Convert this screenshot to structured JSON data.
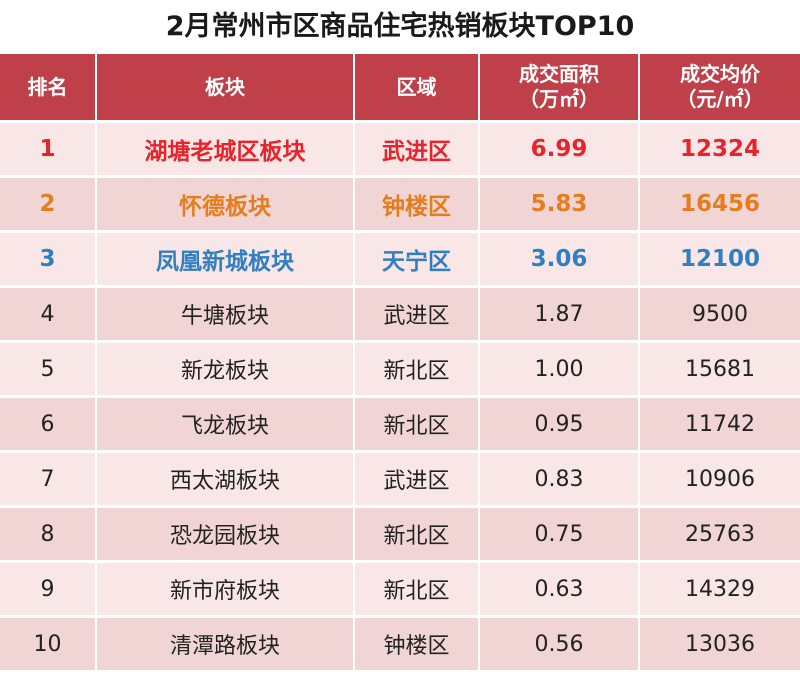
{
  "title": "2月常州市区商品住宅热销板块TOP10",
  "colors": {
    "header_bg": "#c0404a",
    "rank1": "#e8232b",
    "rank2": "#e57d1f",
    "rank3": "#2f7fc1"
  },
  "chart_data": {
    "type": "table",
    "title": "2月常州市区商品住宅热销板块TOP10",
    "columns": [
      "排名",
      "板块",
      "区域",
      "成交面积（万㎡）",
      "成交均价（元/㎡）"
    ],
    "rows": [
      {
        "rank": "1",
        "block": "湖塘老城区板块",
        "district": "武进区",
        "area": "6.99",
        "price": "12324"
      },
      {
        "rank": "2",
        "block": "怀德板块",
        "district": "钟楼区",
        "area": "5.83",
        "price": "16456"
      },
      {
        "rank": "3",
        "block": "凤凰新城板块",
        "district": "天宁区",
        "area": "3.06",
        "price": "12100"
      },
      {
        "rank": "4",
        "block": "牛塘板块",
        "district": "武进区",
        "area": "1.87",
        "price": "9500"
      },
      {
        "rank": "5",
        "block": "新龙板块",
        "district": "新北区",
        "area": "1.00",
        "price": "15681"
      },
      {
        "rank": "6",
        "block": "飞龙板块",
        "district": "新北区",
        "area": "0.95",
        "price": "11742"
      },
      {
        "rank": "7",
        "block": "西太湖板块",
        "district": "武进区",
        "area": "0.83",
        "price": "10906"
      },
      {
        "rank": "8",
        "block": "恐龙园板块",
        "district": "新北区",
        "area": "0.75",
        "price": "25763"
      },
      {
        "rank": "9",
        "block": "新市府板块",
        "district": "新北区",
        "area": "0.63",
        "price": "14329"
      },
      {
        "rank": "10",
        "block": "清潭路板块",
        "district": "钟楼区",
        "area": "0.56",
        "price": "13036"
      }
    ]
  },
  "header": {
    "rank": "排名",
    "block": "板块",
    "district": "区域",
    "area_line1": "成交面积",
    "area_line2": "（万㎡）",
    "price_line1": "成交均价",
    "price_line2": "（元/㎡）"
  }
}
